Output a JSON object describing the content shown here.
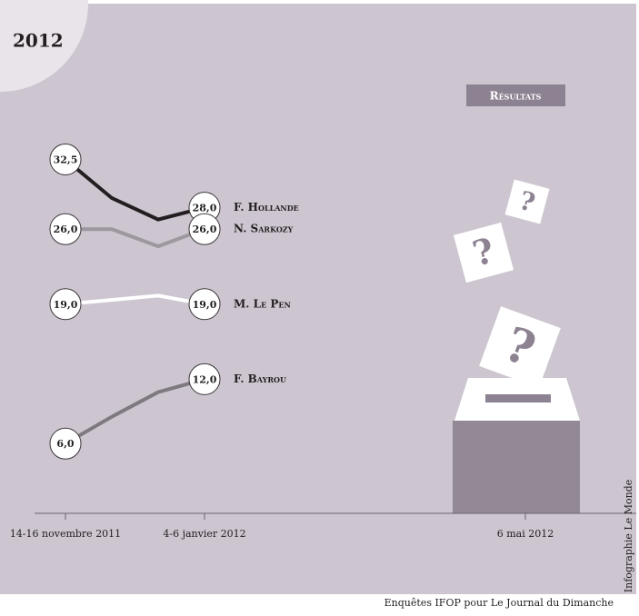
{
  "chart_data": {
    "type": "line",
    "title": "2012",
    "button": "Résultats",
    "categories": [
      "14-16 novembre 2011",
      null,
      null,
      "4-6 janvier 2012"
    ],
    "results_date": "6 mai 2012",
    "ylim": [
      0,
      35
    ],
    "series": [
      {
        "name": "F. Hollande",
        "color": "#231f20",
        "values": [
          32.5,
          28.9,
          26.9,
          28.0
        ],
        "value_labels": [
          "32,5",
          null,
          null,
          "28,0"
        ]
      },
      {
        "name": "N. Sarkozy",
        "color": "#9d989e",
        "values": [
          26.0,
          26.0,
          24.4,
          26.0
        ],
        "value_labels": [
          "26,0",
          null,
          null,
          "26,0"
        ]
      },
      {
        "name": "M. Le Pen",
        "color": "#ffffff",
        "values": [
          19.0,
          19.4,
          19.8,
          19.0
        ],
        "value_labels": [
          "19,0",
          null,
          null,
          "19,0"
        ]
      },
      {
        "name": "F. Bayrou",
        "color": "#7e787f",
        "values": [
          6.0,
          8.5,
          10.8,
          12.0
        ],
        "value_labels": [
          "6,0",
          null,
          null,
          "12,0"
        ]
      }
    ],
    "credit": "Infographie Le Monde",
    "source": "Enquêtes IFOP pour Le Journal du Dimanche"
  }
}
